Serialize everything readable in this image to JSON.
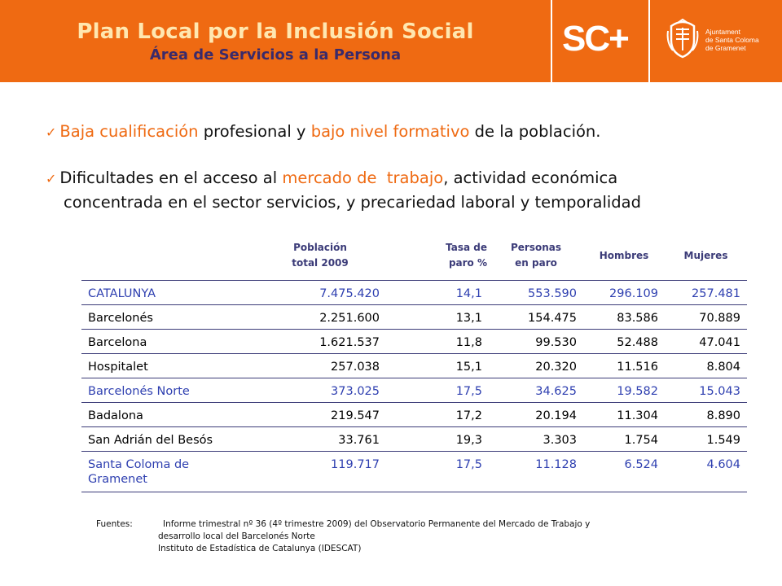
{
  "header": {
    "title": "Plan Local por la Inclusión Social",
    "subtitle": "Área de Servicios a la Persona",
    "logo_text": "SC+",
    "ajuntament_lines": [
      "Ajuntament",
      "de Santa Coloma",
      "de Gramenet"
    ],
    "background_color": "#ef6a12"
  },
  "bullets": [
    {
      "parts": [
        "Baja cualificación",
        " profesional y ",
        "bajo nivel formativo",
        " de la población."
      ]
    },
    {
      "line1": [
        "Dificultades en el acceso al ",
        "mercado de  trabajo",
        ", actividad económica"
      ],
      "line2": "concentrada en el sector servicios, y precariedad laboral y temporalidad"
    }
  ],
  "table": {
    "headers": [
      "",
      [
        "Población",
        "total 2009"
      ],
      [
        "Tasa de",
        "paro %"
      ],
      [
        "Personas",
        "en paro"
      ],
      "Hombres",
      "Mujeres"
    ],
    "rows": [
      {
        "name": "CATALUNYA",
        "poblacion": "7.475.420",
        "tasa": "14,1",
        "personas": "553.590",
        "hombres": "296.109",
        "mujeres": "257.481"
      },
      {
        "name": "Barcelonés",
        "poblacion": "2.251.600",
        "tasa": "13,1",
        "personas": "154.475",
        "hombres": "83.586",
        "mujeres": "70.889"
      },
      {
        "name": "Barcelona",
        "poblacion": "1.621.537",
        "tasa": "11,8",
        "personas": "99.530",
        "hombres": "52.488",
        "mujeres": "47.041"
      },
      {
        "name": "Hospitalet",
        "poblacion": "257.038",
        "tasa": "15,1",
        "personas": "20.320",
        "hombres": "11.516",
        "mujeres": "8.804"
      },
      {
        "name": "Barcelonés Norte",
        "poblacion": "373.025",
        "tasa": "17,5",
        "personas": "34.625",
        "hombres": "19.582",
        "mujeres": "15.043"
      },
      {
        "name": "Badalona",
        "poblacion": "219.547",
        "tasa": "17,2",
        "personas": "20.194",
        "hombres": "11.304",
        "mujeres": "8.890"
      },
      {
        "name": "San Adrián del Besós",
        "poblacion": "33.761",
        "tasa": "19,3",
        "personas": "3.303",
        "hombres": "1.754",
        "mujeres": "1.549"
      },
      {
        "name": "Santa Coloma de Gramenet",
        "poblacion": "119.717",
        "tasa": "17,5",
        "personas": "11.128",
        "hombres": "6.524",
        "mujeres": "4.604"
      }
    ],
    "highlight_color": "#2e3fb0"
  },
  "sources": {
    "label": "Fuentes:",
    "lines": [
      "Informe trimestral nº 36 (4º trimestre 2009) del Observatorio Permanente del Mercado de Trabajo y",
      "desarrollo local del Barcelonés Norte",
      "Instituto de Estadística de Catalunya (IDESCAT)"
    ]
  }
}
